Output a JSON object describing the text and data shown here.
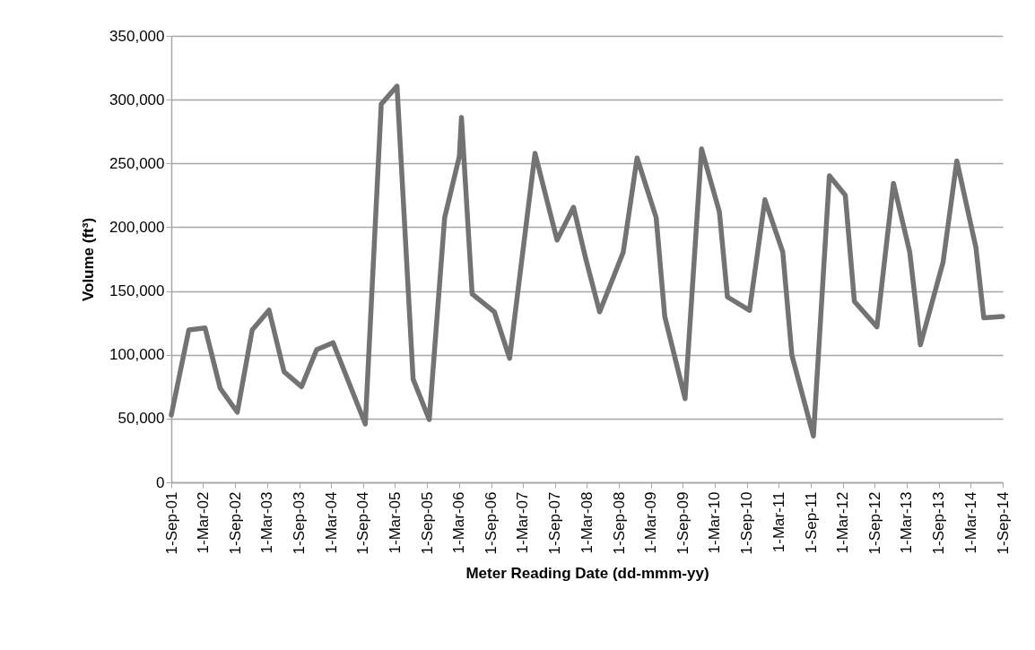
{
  "chart_data": {
    "type": "line",
    "xlabel": "Meter Reading Date (dd-mmm-yy)",
    "ylabel": "Volume (ft³)",
    "x": [
      "2001-09-01",
      "2001-12-10",
      "2002-03-13",
      "2002-06-07",
      "2002-09-13",
      "2002-12-07",
      "2003-03-13",
      "2003-06-07",
      "2003-09-15",
      "2003-12-10",
      "2004-03-13",
      "2004-09-13",
      "2004-12-13",
      "2005-03-13",
      "2005-06-13",
      "2005-09-13",
      "2005-12-10",
      "2006-03-04",
      "2006-03-16",
      "2006-05-16",
      "2006-09-20",
      "2006-12-16",
      "2007-05-10",
      "2007-09-13",
      "2007-12-16",
      "2008-02-25",
      "2008-05-13",
      "2008-09-25",
      "2008-12-13",
      "2009-04-01",
      "2009-05-20",
      "2009-09-13",
      "2009-12-16",
      "2010-03-28",
      "2010-05-13",
      "2010-09-16",
      "2010-12-13",
      "2011-03-25",
      "2011-05-16",
      "2011-09-16",
      "2011-12-16",
      "2012-03-16",
      "2012-05-07",
      "2012-09-13",
      "2012-12-16",
      "2013-03-19",
      "2013-05-19",
      "2013-09-25",
      "2013-12-13",
      "2014-04-01",
      "2014-05-16",
      "2014-09-01"
    ],
    "series": [
      {
        "color": "#737373",
        "values": [
          52700,
          119500,
          121000,
          73800,
          55000,
          119500,
          135000,
          86700,
          75000,
          104000,
          109500,
          45700,
          296500,
          310600,
          80900,
          49200,
          207500,
          255500,
          286000,
          147700,
          133600,
          97300,
          257900,
          189900,
          215700,
          174600,
          133600,
          180500,
          254300,
          207500,
          130000,
          65600,
          261400,
          212000,
          145300,
          134800,
          221500,
          180500,
          99600,
          36300,
          240300,
          225000,
          141800,
          121900,
          234400,
          180500,
          107800,
          172300,
          252000,
          184000,
          128900,
          130000
        ]
      }
    ],
    "xlim": [
      "2001-09-01",
      "2014-09-01"
    ],
    "xticks": [
      {
        "value": "2001-09-01",
        "label": "1-Sep-01"
      },
      {
        "value": "2002-03-01",
        "label": "1-Mar-02"
      },
      {
        "value": "2002-09-01",
        "label": "1-Sep-02"
      },
      {
        "value": "2003-03-01",
        "label": "1-Mar-03"
      },
      {
        "value": "2003-09-01",
        "label": "1-Sep-03"
      },
      {
        "value": "2004-03-01",
        "label": "1-Mar-04"
      },
      {
        "value": "2004-09-01",
        "label": "1-Sep-04"
      },
      {
        "value": "2005-03-01",
        "label": "1-Mar-05"
      },
      {
        "value": "2005-09-01",
        "label": "1-Sep-05"
      },
      {
        "value": "2006-03-01",
        "label": "1-Mar-06"
      },
      {
        "value": "2006-09-01",
        "label": "1-Sep-06"
      },
      {
        "value": "2007-03-01",
        "label": "1-Mar-07"
      },
      {
        "value": "2007-09-01",
        "label": "1-Sep-07"
      },
      {
        "value": "2008-03-01",
        "label": "1-Mar-08"
      },
      {
        "value": "2008-09-01",
        "label": "1-Sep-08"
      },
      {
        "value": "2009-03-01",
        "label": "1-Mar-09"
      },
      {
        "value": "2009-09-01",
        "label": "1-Sep-09"
      },
      {
        "value": "2010-03-01",
        "label": "1-Mar-10"
      },
      {
        "value": "2010-09-01",
        "label": "1-Sep-10"
      },
      {
        "value": "2011-03-01",
        "label": "1-Mar-11"
      },
      {
        "value": "2011-09-01",
        "label": "1-Sep-11"
      },
      {
        "value": "2012-03-01",
        "label": "1-Mar-12"
      },
      {
        "value": "2012-09-01",
        "label": "1-Sep-12"
      },
      {
        "value": "2013-03-01",
        "label": "1-Mar-13"
      },
      {
        "value": "2013-09-01",
        "label": "1-Sep-13"
      },
      {
        "value": "2014-03-01",
        "label": "1-Mar-14"
      },
      {
        "value": "2014-09-01",
        "label": "1-Sep-14"
      }
    ],
    "ylim": [
      0,
      350000
    ],
    "yticks": [
      {
        "value": 0,
        "label": "0"
      },
      {
        "value": 50000,
        "label": "50,000"
      },
      {
        "value": 100000,
        "label": "100,000"
      },
      {
        "value": 150000,
        "label": "150,000"
      },
      {
        "value": 200000,
        "label": "200,000"
      },
      {
        "value": 250000,
        "label": "250,000"
      },
      {
        "value": 300000,
        "label": "300,000"
      },
      {
        "value": 350000,
        "label": "350,000"
      }
    ],
    "grid": "y",
    "legend": false,
    "marker": "none",
    "line_style": "solid"
  }
}
